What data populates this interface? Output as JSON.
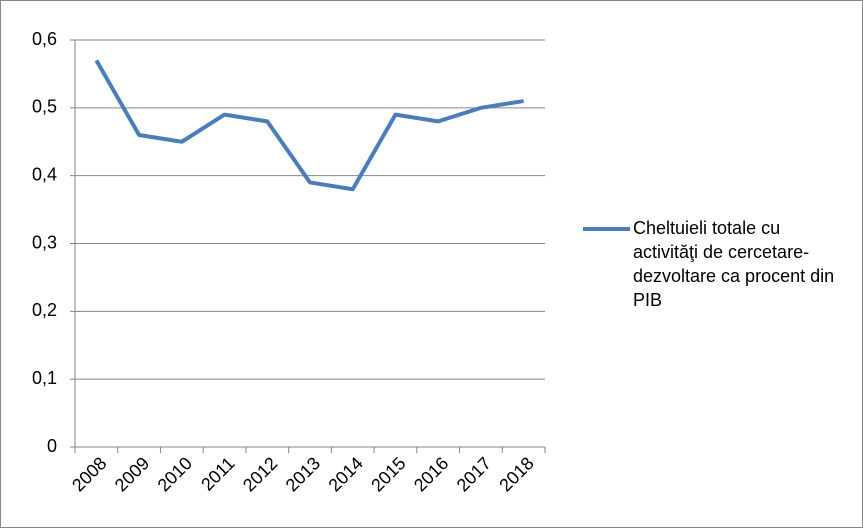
{
  "chart_data": {
    "type": "line",
    "categories": [
      "2008",
      "2009",
      "2010",
      "2011",
      "2012",
      "2013",
      "2014",
      "2015",
      "2016",
      "2017",
      "2018"
    ],
    "series": [
      {
        "name": "Cheltuieli totale cu activităţi de cercetare-dezvoltare ca procent din PIB",
        "color": "#4a7ebb",
        "values": [
          0.57,
          0.46,
          0.45,
          0.49,
          0.48,
          0.39,
          0.38,
          0.49,
          0.48,
          0.5,
          0.51
        ]
      }
    ],
    "ylim": [
      0,
      0.6
    ],
    "yticks": [
      0,
      {
        "value": 0.1,
        "label": "0,1"
      },
      {
        "value": 0.2,
        "label": "0,2"
      },
      {
        "value": 0.3,
        "label": "0,3"
      },
      {
        "value": 0.4,
        "label": "0,4"
      },
      {
        "value": 0.5,
        "label": "0,5"
      },
      {
        "value": 0.6,
        "label": "0,6"
      }
    ],
    "grid": true,
    "legend": "right"
  }
}
